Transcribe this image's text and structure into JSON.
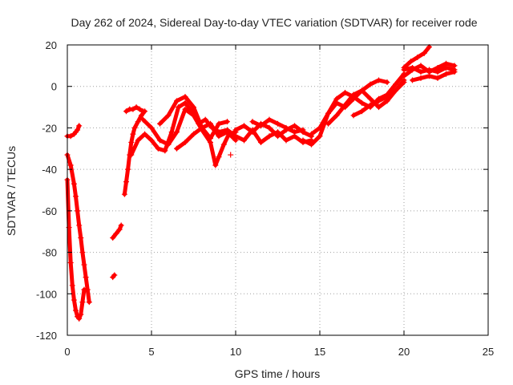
{
  "chart_data": {
    "type": "scatter",
    "title": "Day 262 of 2024, Sidereal Day-to-day VTEC variation (SDTVAR) for receiver rode",
    "xlabel": "GPS time / hours",
    "ylabel": "SDTVAR / TECUs",
    "xlim": [
      0,
      25
    ],
    "ylim": [
      -120,
      20
    ],
    "xticks": [
      0,
      5,
      10,
      15,
      20,
      25
    ],
    "yticks": [
      -120,
      -100,
      -80,
      -60,
      -40,
      -20,
      0,
      20
    ],
    "grid": true,
    "marker": "+",
    "color": "#ff0000",
    "series": [
      {
        "name": "seg-early-left",
        "x": [
          0.0,
          0.1,
          0.2,
          0.3,
          0.4,
          0.5,
          0.6,
          0.7,
          0.8,
          0.9,
          1.0
        ],
        "y": [
          -45,
          -68,
          -85,
          -96,
          -103,
          -108,
          -111,
          -112,
          -110,
          -104,
          -98
        ]
      },
      {
        "name": "seg-early-right",
        "x": [
          0.0,
          0.2,
          0.4,
          0.5,
          0.6,
          0.7,
          0.8,
          0.9,
          1.0,
          1.1,
          1.2,
          1.3
        ],
        "y": [
          -33,
          -38,
          -47,
          -53,
          -60,
          -67,
          -73,
          -80,
          -86,
          -92,
          -98,
          -104
        ]
      },
      {
        "name": "seg-top-left",
        "x": [
          0.0,
          0.2,
          0.4,
          0.5,
          0.6,
          0.7
        ],
        "y": [
          -24,
          -24,
          -23,
          -22,
          -21,
          -19
        ]
      },
      {
        "name": "seg-isolated",
        "x": [
          2.7,
          2.8
        ],
        "y": [
          -92,
          -91
        ]
      },
      {
        "name": "seg-rise-a",
        "x": [
          2.7,
          2.9,
          3.1,
          3.2
        ],
        "y": [
          -73,
          -71,
          -69,
          -67
        ]
      },
      {
        "name": "seg-rise-b",
        "x": [
          3.4,
          3.5,
          3.6,
          3.7,
          3.8,
          3.9,
          4.0,
          4.2,
          4.4,
          4.6
        ],
        "y": [
          -52,
          -46,
          -40,
          -33,
          -27,
          -23,
          -20,
          -17,
          -14,
          -12
        ]
      },
      {
        "name": "seg-rise-c",
        "x": [
          3.5,
          3.7,
          3.9,
          4.1,
          4.3,
          4.5
        ],
        "y": [
          -12,
          -11,
          -11,
          -10,
          -11,
          -12
        ]
      },
      {
        "name": "seg-mid-a",
        "x": [
          3.8,
          4.2,
          4.6,
          5.0,
          5.4,
          5.8,
          6.2,
          6.6,
          7.0,
          7.4,
          7.8,
          8.2,
          8.6,
          9.0,
          9.5,
          10.0
        ],
        "y": [
          -33,
          -26,
          -23,
          -26,
          -30,
          -31,
          -22,
          -10,
          -8,
          -12,
          -18,
          -16,
          -20,
          -22,
          -21,
          -24
        ]
      },
      {
        "name": "seg-mid-b",
        "x": [
          4.5,
          5.0,
          5.5,
          6.0,
          6.5,
          7.0,
          7.5,
          8.0,
          8.5,
          8.8,
          9.0,
          9.3,
          9.6,
          10.0
        ],
        "y": [
          -16,
          -20,
          -26,
          -28,
          -22,
          -11,
          -14,
          -21,
          -27,
          -38,
          -34,
          -28,
          -23,
          -22
        ]
      },
      {
        "name": "seg-mid-c",
        "x": [
          5.5,
          6.0,
          6.5,
          7.0,
          7.5,
          8.0,
          8.5,
          9.0,
          9.5
        ],
        "y": [
          -18,
          -14,
          -7,
          -5,
          -10,
          -20,
          -25,
          -18,
          -17
        ]
      },
      {
        "name": "seg-mid-d",
        "x": [
          6.5,
          7.0,
          7.5,
          8.0,
          8.5,
          9.0,
          9.5,
          10.0
        ],
        "y": [
          -30,
          -27,
          -23,
          -20,
          -18,
          -24,
          -22,
          -26
        ]
      },
      {
        "name": "seg-isolated-2",
        "x": [
          9.7
        ],
        "y": [
          -33
        ]
      },
      {
        "name": "seg-plateau-a",
        "x": [
          10.0,
          10.5,
          11.0,
          11.5,
          12.0,
          12.5,
          13.0,
          13.5,
          14.0,
          14.5
        ],
        "y": [
          -21,
          -19,
          -22,
          -18,
          -20,
          -24,
          -21,
          -19,
          -22,
          -24
        ]
      },
      {
        "name": "seg-plateau-b",
        "x": [
          10.0,
          10.5,
          11.0,
          11.5,
          12.0,
          12.5,
          13.0,
          13.5,
          14.0,
          14.5
        ],
        "y": [
          -24,
          -26,
          -21,
          -27,
          -24,
          -22,
          -26,
          -24,
          -27,
          -26
        ]
      },
      {
        "name": "seg-plateau-c",
        "x": [
          11.0,
          11.5,
          12.0,
          12.5,
          13.0,
          13.5,
          14.0
        ],
        "y": [
          -17,
          -19,
          -16,
          -18,
          -20,
          -22,
          -21
        ]
      },
      {
        "name": "seg-late-a",
        "x": [
          14.0,
          14.5,
          15.0,
          15.5,
          16.0,
          16.5,
          17.0,
          17.5,
          18.0,
          18.5,
          19.0
        ],
        "y": [
          -26,
          -28,
          -24,
          -13,
          -8,
          -10,
          -6,
          -2,
          1,
          3,
          2
        ]
      },
      {
        "name": "seg-late-b",
        "x": [
          14.5,
          15.0,
          15.5,
          16.0,
          16.5,
          17.0,
          17.5,
          18.0,
          18.5,
          19.0,
          19.5,
          20.0
        ],
        "y": [
          -23,
          -20,
          -13,
          -6,
          -3,
          -5,
          -8,
          -10,
          -6,
          -4,
          1,
          6
        ]
      },
      {
        "name": "seg-late-c",
        "x": [
          15.5,
          16.0,
          16.5,
          17.0,
          17.5,
          18.0,
          18.5,
          19.0,
          19.5,
          20.0
        ],
        "y": [
          -18,
          -14,
          -9,
          -4,
          -2,
          -6,
          -10,
          -7,
          -2,
          3
        ]
      },
      {
        "name": "seg-late-d",
        "x": [
          17.0,
          17.5,
          18.0,
          18.5,
          19.0,
          19.5,
          20.0
        ],
        "y": [
          -14,
          -12,
          -9,
          -7,
          -5,
          -2,
          2
        ]
      },
      {
        "name": "seg-end-a",
        "x": [
          20.0,
          20.5,
          21.0,
          21.5,
          22.0,
          22.5,
          23.0
        ],
        "y": [
          8,
          9,
          7,
          8,
          7,
          9,
          8
        ]
      },
      {
        "name": "seg-end-b",
        "x": [
          20.0,
          20.5,
          21.0,
          21.5,
          22.0,
          22.5,
          23.0
        ],
        "y": [
          5,
          8,
          10,
          7,
          9,
          11,
          10
        ]
      },
      {
        "name": "seg-end-c",
        "x": [
          20.0,
          20.4,
          20.8,
          21.2,
          21.5
        ],
        "y": [
          9,
          12,
          14,
          16,
          19
        ]
      },
      {
        "name": "seg-end-d",
        "x": [
          20.5,
          21.0,
          21.5,
          22.0,
          22.5,
          23.0
        ],
        "y": [
          3,
          4,
          5,
          4,
          6,
          7
        ]
      }
    ]
  }
}
